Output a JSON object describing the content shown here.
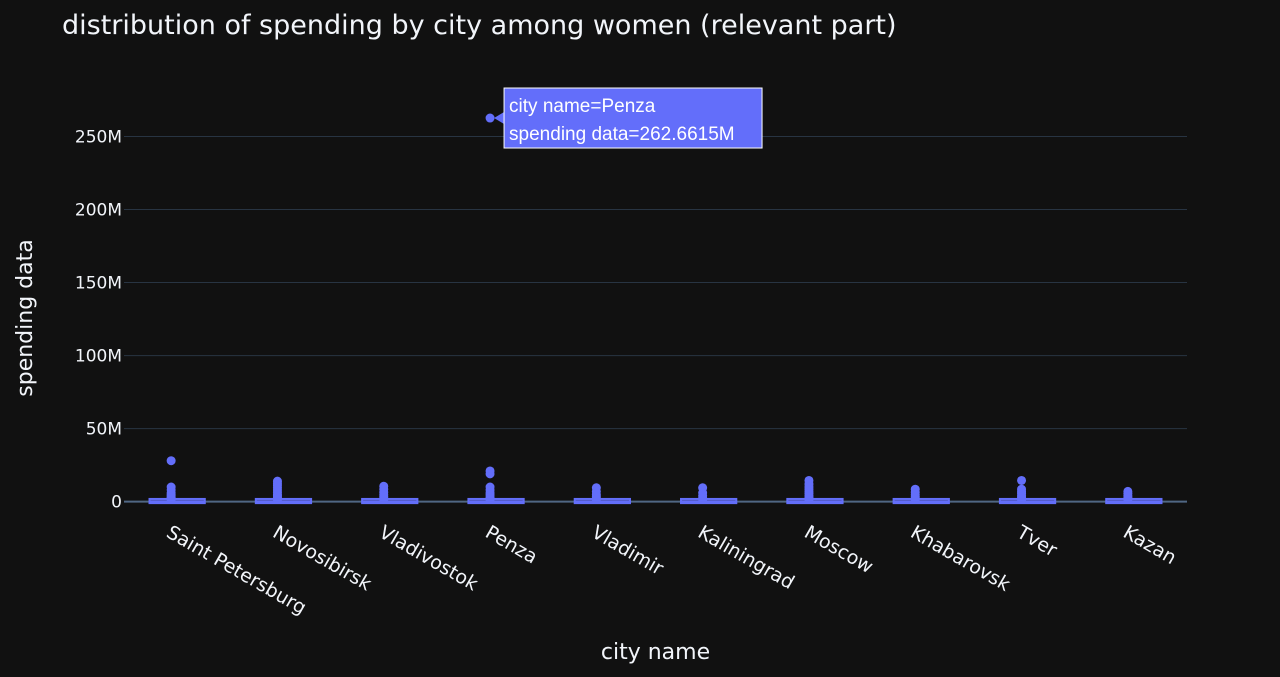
{
  "chart_data": {
    "type": "box",
    "title": "distribution of spending by city among women (relevant part)",
    "xlabel": "city name",
    "ylabel": "spending data",
    "categories": [
      "Saint Petersburg",
      "Novosibirsk",
      "Vladivostok",
      "Penza",
      "Vladimir",
      "Kaliningrad",
      "Moscow",
      "Khabarovsk",
      "Tver",
      "Kazan"
    ],
    "ylim": [
      -3000000,
      275000000
    ],
    "yticks": [
      0,
      50000000,
      100000000,
      150000000,
      200000000,
      250000000
    ],
    "ytick_labels": [
      "0",
      "50M",
      "100M",
      "150M",
      "200M",
      "250M"
    ],
    "grid": true,
    "color": "#636efa",
    "boxes": [
      {
        "name": "Saint Petersburg",
        "q1": 0,
        "median": 200000,
        "q3": 800000,
        "outliers": [
          28000000,
          10000000,
          8000000,
          6000000,
          5000000,
          4000000,
          3000000,
          2500000,
          2000000,
          1500000
        ]
      },
      {
        "name": "Novosibirsk",
        "q1": 0,
        "median": 200000,
        "q3": 800000,
        "outliers": [
          14000000,
          12500000,
          11000000,
          9500000,
          8000000,
          6500000,
          5000000,
          4000000,
          3000000,
          2000000,
          1500000
        ]
      },
      {
        "name": "Vladivostok",
        "q1": 0,
        "median": 200000,
        "q3": 800000,
        "outliers": [
          10500000,
          8500000,
          6500000,
          5000000,
          3500000,
          2500000,
          1500000
        ]
      },
      {
        "name": "Penza",
        "q1": 0,
        "median": 200000,
        "q3": 800000,
        "outliers": [
          262661500,
          21000000,
          19000000,
          10000000,
          8000000,
          6000000,
          4500000,
          3000000,
          2000000,
          1500000
        ]
      },
      {
        "name": "Vladimir",
        "q1": 0,
        "median": 200000,
        "q3": 800000,
        "outliers": [
          9500000,
          7000000,
          5000000,
          3500000,
          2500000,
          1500000
        ]
      },
      {
        "name": "Kaliningrad",
        "q1": 0,
        "median": 200000,
        "q3": 800000,
        "outliers": [
          9500000,
          6000000,
          4000000,
          2500000,
          1500000
        ]
      },
      {
        "name": "Moscow",
        "q1": 0,
        "median": 200000,
        "q3": 800000,
        "outliers": [
          14500000,
          12000000,
          10000000,
          8500000,
          7000000,
          5500000,
          4000000,
          3000000,
          2000000,
          1500000
        ]
      },
      {
        "name": "Khabarovsk",
        "q1": 0,
        "median": 200000,
        "q3": 800000,
        "outliers": [
          8500000,
          6500000,
          5000000,
          3500000,
          2500000,
          1500000
        ]
      },
      {
        "name": "Tver",
        "q1": 0,
        "median": 200000,
        "q3": 800000,
        "outliers": [
          14500000,
          8500000,
          7000000,
          5500000,
          4000000,
          3000000,
          2000000,
          1500000
        ]
      },
      {
        "name": "Kazan",
        "q1": 0,
        "median": 200000,
        "q3": 800000,
        "outliers": [
          7000000,
          5500000,
          4000000,
          3000000,
          2000000,
          1500000
        ]
      }
    ],
    "hover": {
      "category": "Penza",
      "value": 262661500,
      "lines": [
        "city name=Penza",
        "spending data=262.6615M"
      ]
    }
  }
}
